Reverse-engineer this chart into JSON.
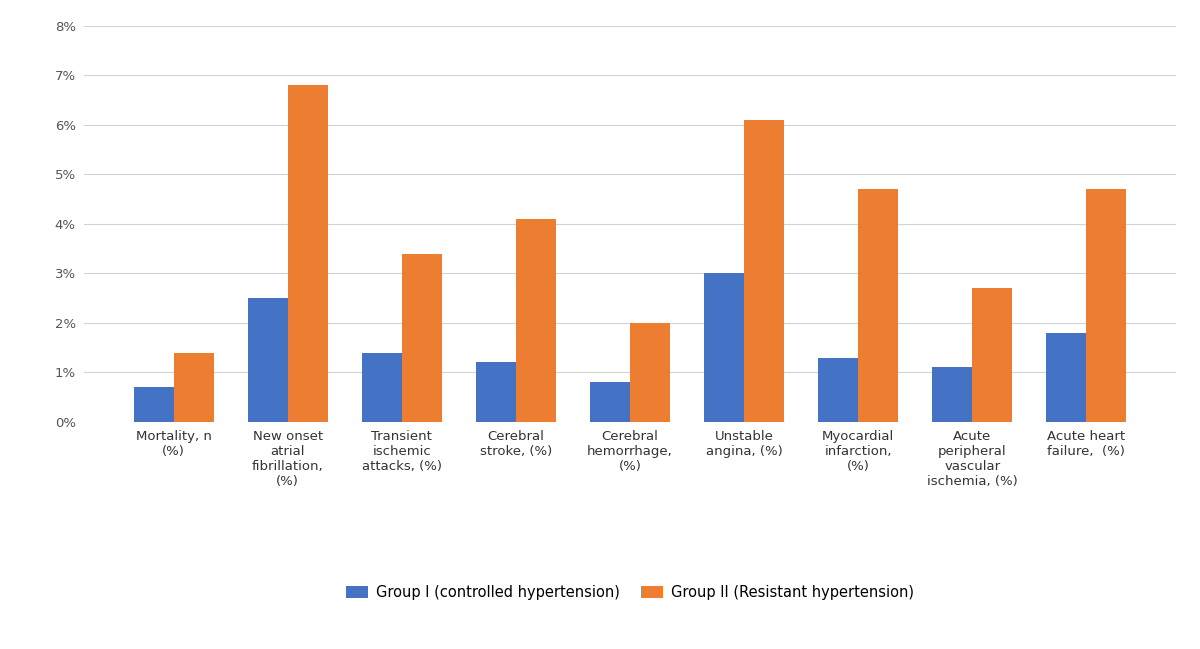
{
  "categories": [
    "Mortality, n\n(%)",
    "New onset\natrial\nfibrillation,\n(%)",
    "Transient\nischemic\nattacks, (%)",
    "Cerebral\nstroke, (%)",
    "Cerebral\nhemorrhage,\n(%)",
    "Unstable\nangina, (%)",
    "Myocardial\ninfarction,\n(%)",
    "Acute\nperipheral\nvascular\nischemia, (%)",
    "Acute heart\nfailure,  (%)"
  ],
  "group1_values": [
    0.007,
    0.025,
    0.014,
    0.012,
    0.008,
    0.03,
    0.013,
    0.011,
    0.018
  ],
  "group2_values": [
    0.014,
    0.068,
    0.034,
    0.041,
    0.02,
    0.061,
    0.047,
    0.027,
    0.047
  ],
  "group1_color": "#4472c4",
  "group2_color": "#ed7d31",
  "group1_label": "Group I (controlled hypertension)",
  "group2_label": "Group II (Resistant hypertension)",
  "ylim": [
    0,
    0.08
  ],
  "yticks": [
    0,
    0.01,
    0.02,
    0.03,
    0.04,
    0.05,
    0.06,
    0.07,
    0.08
  ],
  "ytick_labels": [
    "0%",
    "1%",
    "2%",
    "3%",
    "4%",
    "5%",
    "6%",
    "7%",
    "8%"
  ],
  "background_color": "#ffffff",
  "grid_color": "#d3d3d3",
  "bar_width": 0.35,
  "legend_fontsize": 10.5,
  "tick_fontsize": 9.5,
  "figure_width": 12.0,
  "figure_height": 6.49
}
